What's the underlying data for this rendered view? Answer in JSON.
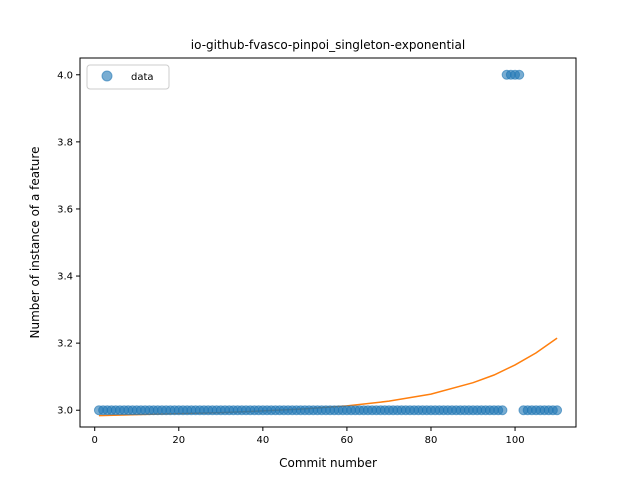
{
  "chart_data": {
    "type": "scatter",
    "title": "io-github-fvasco-pinpoi_singleton-exponential",
    "xlabel": "Commit number",
    "ylabel": "Number of instance of a feature",
    "xlim": [
      -3.5,
      114.5
    ],
    "ylim": [
      2.95,
      4.05
    ],
    "xticks": [
      0,
      20,
      40,
      60,
      80,
      100
    ],
    "yticks": [
      3.0,
      3.2,
      3.4,
      3.6,
      3.8,
      4.0
    ],
    "xtick_labels": [
      "0",
      "20",
      "40",
      "60",
      "80",
      "100"
    ],
    "ytick_labels": [
      "3.0",
      "3.2",
      "3.4",
      "3.6",
      "3.8",
      "4.0"
    ],
    "grid": false,
    "legend": {
      "placement": "top-left",
      "entries": [
        "data"
      ]
    },
    "series": [
      {
        "name": "data",
        "kind": "scatter",
        "color": "#1f77b4",
        "x": [
          1,
          2,
          3,
          4,
          5,
          6,
          7,
          8,
          9,
          10,
          11,
          12,
          13,
          14,
          15,
          16,
          17,
          18,
          19,
          20,
          21,
          22,
          23,
          24,
          25,
          26,
          27,
          28,
          29,
          30,
          31,
          32,
          33,
          34,
          35,
          36,
          37,
          38,
          39,
          40,
          41,
          42,
          43,
          44,
          45,
          46,
          47,
          48,
          49,
          50,
          51,
          52,
          53,
          54,
          55,
          56,
          57,
          58,
          59,
          60,
          61,
          62,
          63,
          64,
          65,
          66,
          67,
          68,
          69,
          70,
          71,
          72,
          73,
          74,
          75,
          76,
          77,
          78,
          79,
          80,
          81,
          82,
          83,
          84,
          85,
          86,
          87,
          88,
          89,
          90,
          91,
          92,
          93,
          94,
          95,
          96,
          97,
          98,
          99,
          100,
          101,
          102,
          103,
          104,
          105,
          106,
          107,
          108,
          109,
          110
        ],
        "y": [
          3,
          3,
          3,
          3,
          3,
          3,
          3,
          3,
          3,
          3,
          3,
          3,
          3,
          3,
          3,
          3,
          3,
          3,
          3,
          3,
          3,
          3,
          3,
          3,
          3,
          3,
          3,
          3,
          3,
          3,
          3,
          3,
          3,
          3,
          3,
          3,
          3,
          3,
          3,
          3,
          3,
          3,
          3,
          3,
          3,
          3,
          3,
          3,
          3,
          3,
          3,
          3,
          3,
          3,
          3,
          3,
          3,
          3,
          3,
          3,
          3,
          3,
          3,
          3,
          3,
          3,
          3,
          3,
          3,
          3,
          3,
          3,
          3,
          3,
          3,
          3,
          3,
          3,
          3,
          3,
          3,
          3,
          3,
          3,
          3,
          3,
          3,
          3,
          3,
          3,
          3,
          3,
          3,
          3,
          3,
          3,
          3,
          4,
          4,
          4,
          4,
          3,
          3,
          3,
          3,
          3,
          3,
          3,
          3,
          3
        ]
      },
      {
        "kind": "line",
        "color": "#ff7f0e",
        "x": [
          1,
          10,
          20,
          30,
          40,
          50,
          60,
          70,
          80,
          90,
          95,
          100,
          105,
          110
        ],
        "y": [
          2.984,
          2.987,
          2.99,
          2.993,
          2.998,
          3.004,
          3.013,
          3.027,
          3.048,
          3.082,
          3.105,
          3.135,
          3.171,
          3.215
        ]
      }
    ]
  }
}
